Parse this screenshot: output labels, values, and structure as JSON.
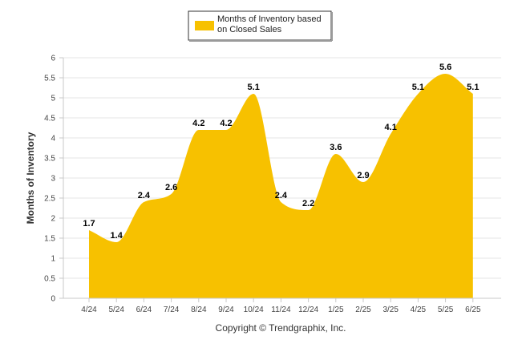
{
  "chart_data": {
    "type": "area",
    "categories": [
      "4/24",
      "5/24",
      "6/24",
      "7/24",
      "8/24",
      "9/24",
      "10/24",
      "11/24",
      "12/24",
      "1/25",
      "2/25",
      "3/25",
      "4/25",
      "5/25",
      "6/25"
    ],
    "series": [
      {
        "name": "Months of Inventory based on Closed Sales",
        "values": [
          1.7,
          1.4,
          2.4,
          2.6,
          4.2,
          4.2,
          5.1,
          2.4,
          2.2,
          3.6,
          2.9,
          4.1,
          5.1,
          5.6,
          5.1
        ],
        "color": "#F7C100"
      }
    ],
    "ylabel": "Months of Inventory",
    "xlabel": "",
    "ylim": [
      0,
      6
    ],
    "yticks": [
      "0",
      "0.5",
      "1",
      "1.5",
      "2",
      "2.5",
      "3",
      "3.5",
      "4",
      "4.5",
      "5",
      "5.5",
      "6"
    ],
    "grid": true,
    "legend_position": "top-center"
  },
  "legend": {
    "line1": "Months of Inventory based",
    "line2": "on Closed Sales"
  },
  "footer": {
    "copyright": "Copyright © Trendgraphix, Inc."
  }
}
